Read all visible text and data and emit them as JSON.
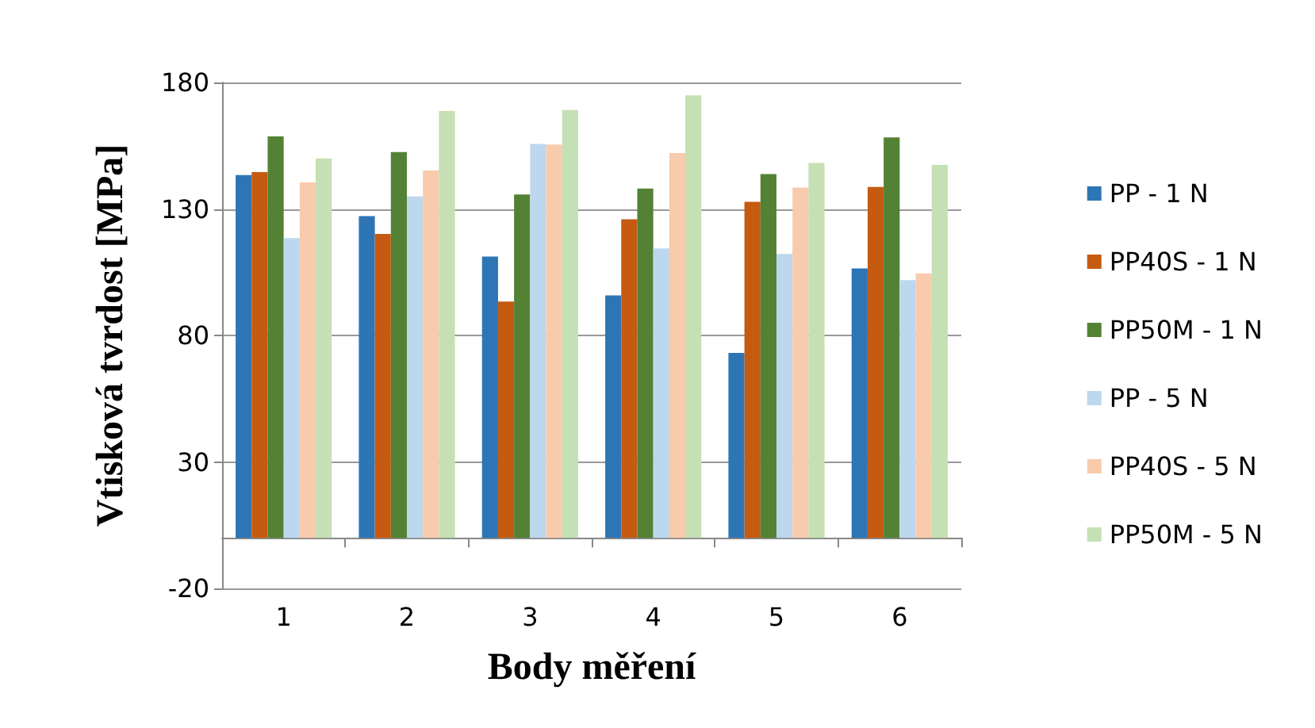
{
  "chart_data": {
    "type": "bar",
    "xlabel": "Body měření",
    "ylabel": "Vtisková tvrdost [MPa]",
    "categories": [
      "1",
      "2",
      "3",
      "4",
      "5",
      "6"
    ],
    "series": [
      {
        "name": "PP - 1 N",
        "color": "#2e75b6",
        "values": [
          143.4,
          127.2,
          111.2,
          95.8,
          73.1,
          106.5
        ]
      },
      {
        "name": "PP40S - 1 N",
        "color": "#c55a11",
        "values": [
          144.6,
          120.1,
          93.4,
          125.9,
          132.8,
          138.7
        ]
      },
      {
        "name": "PP50M - 1 N",
        "color": "#548235",
        "values": [
          158.7,
          152.5,
          135.7,
          138.1,
          143.8,
          158.3
        ]
      },
      {
        "name": "PP - 5 N",
        "color": "#bdd7ee",
        "values": [
          118.5,
          134.9,
          155.7,
          114.4,
          112.2,
          101.9
        ]
      },
      {
        "name": "PP40S - 5 N",
        "color": "#f8cbad",
        "values": [
          140.5,
          145.2,
          155.5,
          152.1,
          138.5,
          104.5
        ]
      },
      {
        "name": "PP50M - 5 N",
        "color": "#c5e0b4",
        "values": [
          150,
          168.7,
          169.1,
          174.9,
          148.2,
          147.4
        ]
      }
    ],
    "ylim": [
      -20,
      180
    ],
    "yticks": [
      -20,
      30,
      80,
      130,
      180
    ],
    "grid": "y",
    "legend": "right"
  }
}
